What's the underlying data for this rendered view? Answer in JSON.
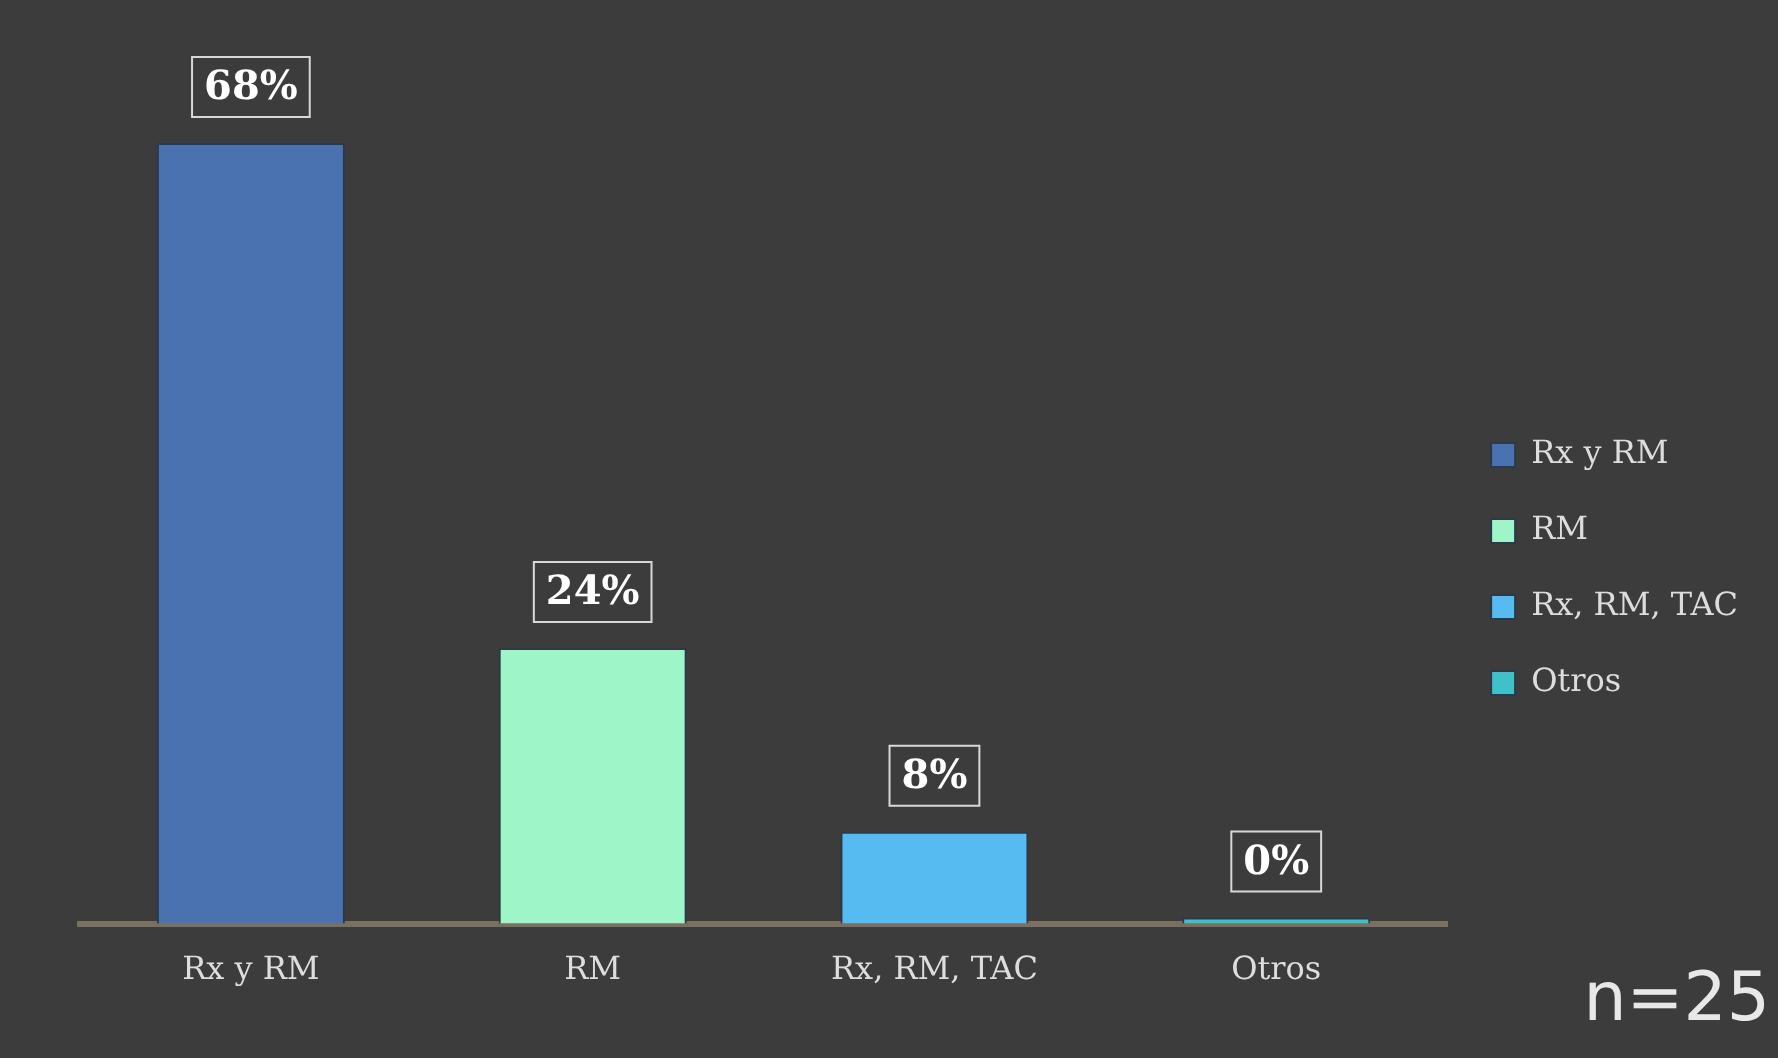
{
  "chart_data": {
    "type": "bar",
    "categories": [
      "Rx y RM",
      "RM",
      "Rx, RM, TAC",
      "Otros"
    ],
    "series": [
      {
        "name": "Rx y RM",
        "color": "#4a72b0",
        "values": [
          68,
          null,
          null,
          null
        ],
        "value_labels": [
          "68%",
          null,
          null,
          null
        ]
      },
      {
        "name": "RM",
        "color": "#9ef5c8",
        "values": [
          null,
          24,
          null,
          null
        ],
        "value_labels": [
          null,
          "24%",
          null,
          null
        ]
      },
      {
        "name": "Rx, RM, TAC",
        "color": "#55bbf0",
        "values": [
          null,
          null,
          8,
          null
        ],
        "value_labels": [
          null,
          null,
          "8%",
          null
        ]
      },
      {
        "name": "Otros",
        "color": "#40c0c8",
        "values": [
          null,
          null,
          null,
          0
        ],
        "value_labels": [
          null,
          null,
          null,
          "0%"
        ]
      }
    ],
    "tick_labels": "x",
    "grid": false,
    "legend": "right",
    "annotations": [
      "n=25"
    ]
  }
}
